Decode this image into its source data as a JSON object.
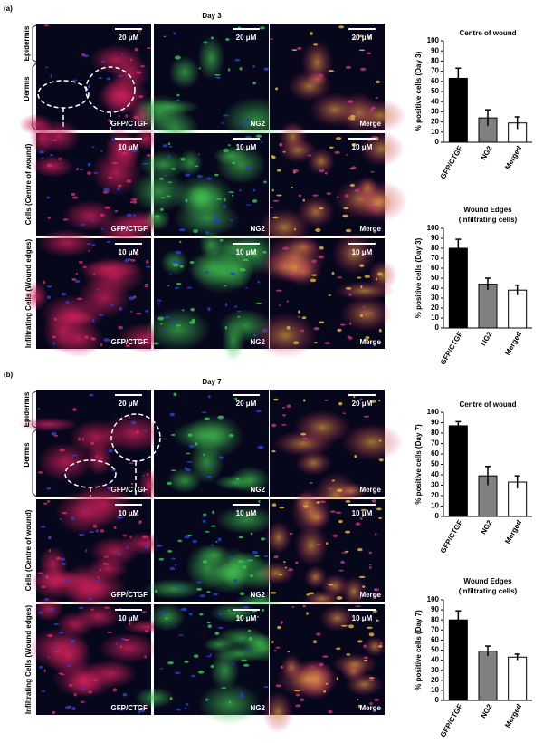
{
  "figures": [
    {
      "label": "(a)",
      "day": "Day 3",
      "layers": [
        "Epidermis",
        "Dermis"
      ],
      "rows": [
        {
          "scale": "20 μM",
          "panels": [
            "GFP/CTGF",
            "NG2",
            "Merge"
          ]
        },
        {
          "label": "Cells (Centre of wound)",
          "scale": "10 μM",
          "panels": [
            "GFP/CTGF",
            "NG2",
            "Merge"
          ]
        },
        {
          "label": "Infiltrating Cells (Wound edges)",
          "scale": "10 μM",
          "panels": [
            "GFP/CTGF",
            "NG2",
            "Merge"
          ]
        }
      ]
    },
    {
      "label": "(b)",
      "day": "Day 7",
      "layers": [
        "Epidermis",
        "Dermis"
      ],
      "rows": [
        {
          "scale": "20 μM",
          "panels": [
            "GFP/CTGF",
            "NG2",
            "Merge"
          ]
        },
        {
          "label": "Cells (Centre of wound)",
          "scale": "10 μM",
          "panels": [
            "GFP/CTGF",
            "NG2",
            "Merge"
          ]
        },
        {
          "label": "Infiltrating Cells (Wound edges)",
          "scale": "10 μM",
          "panels": [
            "GFP/CTGF",
            "NG2",
            "Merge"
          ]
        }
      ]
    }
  ],
  "chart_data": [
    {
      "type": "bar",
      "title": "Centre of wound",
      "y_label": "% positive cells (Day 3)",
      "categories": [
        "GFP/CTGF",
        "NG2",
        "Merged"
      ],
      "values": [
        63,
        24,
        19
      ],
      "errors": [
        10,
        8,
        6
      ],
      "colors": [
        "#000000",
        "#808080",
        "#ffffff"
      ],
      "ylim": [
        0,
        100
      ],
      "yticks": [
        0,
        10,
        20,
        30,
        40,
        50,
        60,
        70,
        80,
        90,
        100
      ]
    },
    {
      "type": "bar",
      "title": "Wound Edges",
      "subtitle": "(Infiltrating cells)",
      "y_label": "% positive cells (Day 3)",
      "categories": [
        "GFP/CTGF",
        "NG2",
        "Merged"
      ],
      "values": [
        80,
        44,
        38
      ],
      "errors": [
        9,
        6,
        5
      ],
      "colors": [
        "#000000",
        "#808080",
        "#ffffff"
      ],
      "ylim": [
        0,
        100
      ],
      "yticks": [
        0,
        10,
        20,
        30,
        40,
        50,
        60,
        70,
        80,
        90,
        100
      ]
    },
    {
      "type": "bar",
      "title": "Centre of wound",
      "y_label": "% positive cells (Day 7)",
      "categories": [
        "GFP/CTGF",
        "NG2",
        "Merged"
      ],
      "values": [
        87,
        39,
        33
      ],
      "errors": [
        4,
        9,
        6
      ],
      "colors": [
        "#000000",
        "#808080",
        "#ffffff"
      ],
      "ylim": [
        0,
        100
      ],
      "yticks": [
        0,
        10,
        20,
        30,
        40,
        50,
        60,
        70,
        80,
        90,
        100
      ]
    },
    {
      "type": "bar",
      "title": "Wound Edges",
      "subtitle": "(Infiltrating cells)",
      "y_label": "% positive cells (Day 7)",
      "categories": [
        "GFP/CTGF",
        "NG2",
        "Merged"
      ],
      "values": [
        80,
        49,
        43
      ],
      "errors": [
        9,
        5,
        3
      ],
      "colors": [
        "#000000",
        "#808080",
        "#ffffff"
      ],
      "ylim": [
        0,
        100
      ],
      "yticks": [
        0,
        10,
        20,
        30,
        40,
        50,
        60,
        70,
        80,
        90,
        100
      ]
    }
  ]
}
